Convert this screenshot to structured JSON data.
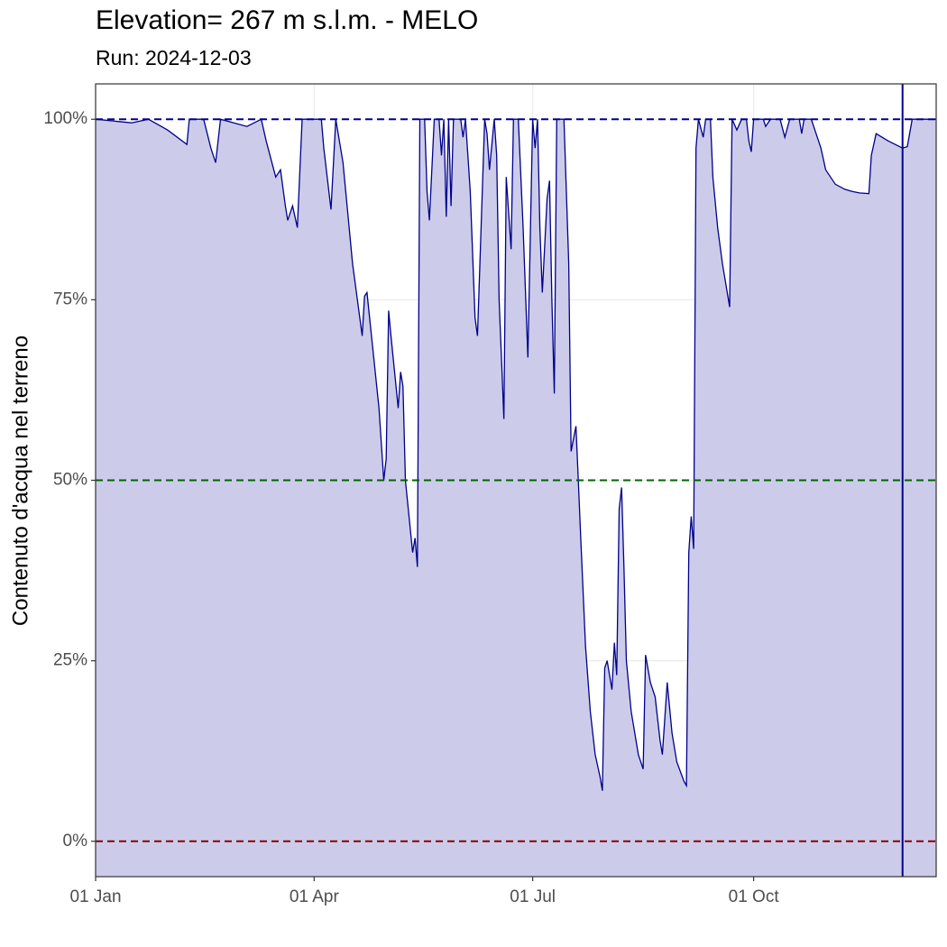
{
  "chart_data": {
    "type": "area",
    "title": "Elevation= 267 m s.l.m. - MELO",
    "subtitle": "Run: 2024-12-03",
    "y_label": "Contenuto d'acqua nel terreno",
    "color": "#00008b",
    "fill_color": "#ccccea",
    "grid": true,
    "x": [
      "01 Jan",
      "16 Jan",
      "23 Jan",
      "31 Jan",
      "08 Feb",
      "09 Feb",
      "15 Feb",
      "18 Feb",
      "20 Feb",
      "22 Feb",
      "04 Mar",
      "10 Mar",
      "12 Mar",
      "16 Mar",
      "18 Mar",
      "20 Mar",
      "21 Mar",
      "23 Mar",
      "25 Mar",
      "27 Mar",
      "04 Apr",
      "05 Apr",
      "08 Apr",
      "10 Apr",
      "13 Apr",
      "17 Apr",
      "21 Apr",
      "22 Apr",
      "23 Apr",
      "28 Apr",
      "30 Apr",
      "01 May",
      "02 May",
      "03 May",
      "06 May",
      "07 May",
      "08 May",
      "09 May",
      "12 May",
      "13 May",
      "14 May",
      "15 May",
      "17 May",
      "18 May",
      "19 May",
      "21 May",
      "23 May",
      "24 May",
      "25 May",
      "26 May",
      "27 May",
      "28 May",
      "29 May",
      "01 Jun",
      "02 Jun",
      "03 Jun",
      "05 Jun",
      "07 Jun",
      "08 Jun",
      "09 Jun",
      "11 Jun",
      "12 Jun",
      "13 Jun",
      "15 Jun",
      "16 Jun",
      "17 Jun",
      "19 Jun",
      "20 Jun",
      "22 Jun",
      "23 Jun",
      "25 Jun",
      "27 Jun",
      "29 Jun",
      "01 Jul",
      "02 Jul",
      "03 Jul",
      "04 Jul",
      "05 Jul",
      "07 Jul",
      "08 Jul",
      "09 Jul",
      "10 Jul",
      "11 Jul",
      "14 Jul",
      "16 Jul",
      "17 Jul",
      "19 Jul",
      "20 Jul",
      "21 Jul",
      "23 Jul",
      "25 Jul",
      "27 Jul",
      "29 Jul",
      "30 Jul",
      "31 Jul",
      "01 Aug",
      "03 Aug",
      "04 Aug",
      "05 Aug",
      "06 Aug",
      "07 Aug",
      "08 Aug",
      "09 Aug",
      "11 Aug",
      "14 Aug",
      "16 Aug",
      "17 Aug",
      "19 Aug",
      "21 Aug",
      "23 Aug",
      "24 Aug",
      "26 Aug",
      "28 Aug",
      "30 Aug",
      "02 Sep",
      "03 Sep",
      "04 Sep",
      "05 Sep",
      "06 Sep",
      "07 Sep",
      "08 Sep",
      "10 Sep",
      "11 Sep",
      "13 Sep",
      "14 Sep",
      "16 Sep",
      "18 Sep",
      "21 Sep",
      "22 Sep",
      "24 Sep",
      "26 Sep",
      "28 Sep",
      "29 Sep",
      "30 Sep",
      "01 Oct",
      "05 Oct",
      "06 Oct",
      "08 Oct",
      "12 Oct",
      "14 Oct",
      "16 Oct",
      "20 Oct",
      "21 Oct",
      "22 Oct",
      "25 Oct",
      "29 Oct",
      "31 Oct",
      "04 Nov",
      "08 Nov",
      "11 Nov",
      "14 Nov",
      "18 Nov",
      "19 Nov",
      "21 Nov",
      "26 Nov",
      "02 Dec",
      "04 Dec",
      "06 Dec",
      "16 Dec"
    ],
    "values": [
      100,
      99.5,
      100,
      98.5,
      96.5,
      100,
      100,
      96,
      94,
      100,
      99,
      100,
      97,
      92,
      93,
      88,
      86,
      88,
      85,
      100,
      100,
      96,
      87.5,
      100,
      94,
      80,
      70,
      75.5,
      76,
      60,
      50,
      53,
      73.5,
      70,
      60,
      65,
      63,
      50,
      40,
      42,
      38,
      100,
      100,
      90,
      86,
      100,
      100,
      95,
      100,
      86.5,
      100,
      88,
      100,
      100,
      97.5,
      100,
      90,
      72.5,
      70,
      80,
      100,
      98,
      93,
      100,
      95,
      75,
      58.5,
      92,
      82,
      100,
      100,
      85,
      67,
      100,
      96,
      100,
      85,
      76,
      89,
      91.5,
      75,
      62,
      100,
      100,
      80,
      54,
      57.5,
      50,
      42,
      27,
      18,
      12,
      9,
      7,
      24,
      25,
      21,
      27.5,
      23,
      46,
      49,
      38,
      25,
      18,
      12,
      10,
      25.8,
      22,
      20,
      14,
      12,
      22,
      15,
      11,
      8.3,
      7.7,
      40,
      45,
      40.5,
      96,
      100,
      97.5,
      100,
      100,
      92,
      85,
      80,
      74,
      100,
      98.5,
      100,
      100,
      97,
      95.5,
      100,
      100,
      99,
      100,
      100,
      97.5,
      100,
      100,
      98,
      100,
      100,
      96,
      93,
      91,
      90.3,
      90,
      89.8,
      89.7,
      95,
      98,
      97,
      96,
      96.2,
      100,
      100
    ],
    "xlim": [
      "01 Jan",
      "16 Dec"
    ],
    "xticks": [
      "01 Jan",
      "01 Apr",
      "01 Jul",
      "01 Oct"
    ],
    "ylim": [
      -4.9,
      104.9
    ],
    "yticks": [
      {
        "value": 0,
        "label": "0%"
      },
      {
        "value": 25,
        "label": "25%"
      },
      {
        "value": 50,
        "label": "50%"
      },
      {
        "value": 75,
        "label": "75%"
      },
      {
        "value": 100,
        "label": "100%"
      }
    ],
    "hlines": [
      {
        "value": 100,
        "color": "#00008b"
      },
      {
        "value": 50,
        "color": "#006400"
      },
      {
        "value": 0,
        "color": "#8b0000"
      }
    ],
    "vline": {
      "x": "02 Dec",
      "color": "#00008b"
    }
  }
}
